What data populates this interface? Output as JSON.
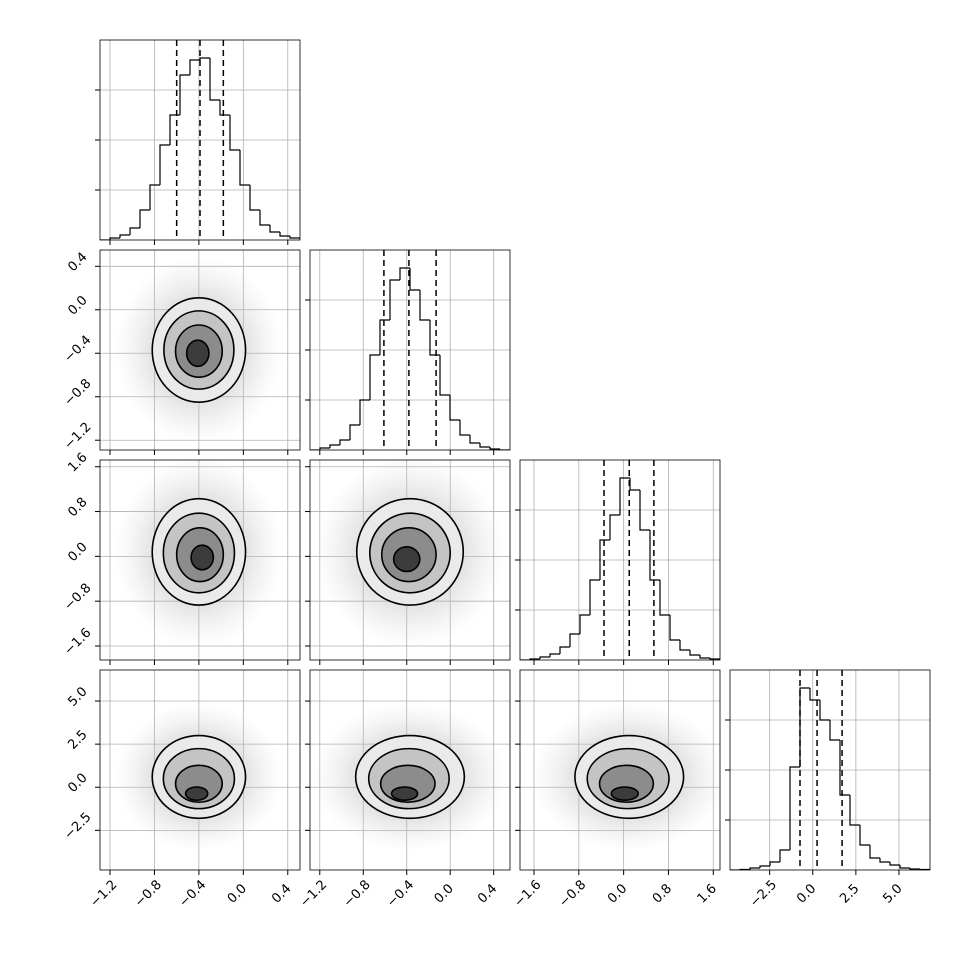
{
  "chart_data": {
    "type": "corner",
    "grid": true,
    "line_color": "#000000",
    "grid_color": "#b0b0b0",
    "contour_fills": [
      "#eaeaea",
      "#c4c4c4",
      "#8c8c8c",
      "#3c3c3c"
    ],
    "hist_ylim": [
      0,
      2000
    ],
    "hist_yticks": [
      500,
      1000,
      1500
    ],
    "variables": [
      {
        "lim": [
          -1.29,
          0.51
        ],
        "ticks": [
          {
            "value": -1.2,
            "label": "−1.2"
          },
          {
            "value": -0.8,
            "label": "−0.8"
          },
          {
            "value": -0.4,
            "label": "−0.4"
          },
          {
            "value": 0,
            "label": "0.0"
          },
          0.4
        ],
        "bins": [
          -1.29,
          -1.2,
          -1.11,
          -1.02,
          -0.93,
          -0.84,
          -0.75,
          -0.66,
          -0.57,
          -0.48,
          -0.39,
          -0.3,
          -0.21,
          -0.12,
          -0.03,
          0.06,
          0.15,
          0.24,
          0.33,
          0.42,
          0.51
        ],
        "counts": [
          0,
          20,
          50,
          120,
          300,
          550,
          950,
          1250,
          1650,
          1800,
          1820,
          1400,
          1250,
          900,
          550,
          300,
          150,
          80,
          40,
          20
        ],
        "quantiles": [
          -0.6,
          -0.39,
          -0.18
        ]
      },
      {
        "lim": [
          -1.29,
          0.55
        ],
        "ticks": [
          {
            "value": -1.2,
            "label": "−1.2"
          },
          {
            "value": -0.8,
            "label": "−0.8"
          },
          {
            "value": -0.4,
            "label": "−0.4"
          },
          {
            "value": 0,
            "label": "0.0"
          },
          0.4
        ],
        "bins": [
          -1.29,
          -1.198,
          -1.106,
          -1.014,
          -0.922,
          -0.83,
          -0.738,
          -0.646,
          -0.554,
          -0.462,
          -0.37,
          -0.278,
          -0.186,
          -0.094,
          -0.002,
          0.09,
          0.182,
          0.274,
          0.366,
          0.458,
          0.55
        ],
        "counts": [
          0,
          20,
          50,
          100,
          250,
          500,
          950,
          1300,
          1700,
          1820,
          1600,
          1300,
          950,
          550,
          300,
          150,
          70,
          30,
          10,
          0
        ],
        "quantiles": [
          -0.61,
          -0.38,
          -0.13
        ]
      },
      {
        "lim": [
          -1.85,
          1.72
        ],
        "ticks": [
          {
            "value": -1.6,
            "label": "−1.6"
          },
          {
            "value": -0.8,
            "label": "−0.8"
          },
          {
            "value": 0,
            "label": "0.0"
          },
          0.8,
          1.6
        ],
        "bins": [
          -1.85,
          -1.6715,
          -1.493,
          -1.3145,
          -1.136,
          -0.9575,
          -0.779,
          -0.6005,
          -0.422,
          -0.2435,
          -0.065,
          0.1135,
          0.292,
          0.4705,
          0.649,
          0.8275,
          1.006,
          1.1845,
          1.363,
          1.5415,
          1.72
        ],
        "counts": [
          0,
          10,
          30,
          60,
          130,
          260,
          450,
          800,
          1200,
          1450,
          1820,
          1700,
          1300,
          800,
          450,
          200,
          100,
          50,
          20,
          10
        ],
        "quantiles": [
          -0.35,
          0.1,
          0.54
        ]
      },
      {
        "lim": [
          -4.8,
          6.8
        ],
        "ticks": [
          {
            "value": -2.5,
            "label": "−2.5"
          },
          {
            "value": 0,
            "label": "0.0"
          },
          2.5,
          {
            "value": 5,
            "label": "5.0"
          }
        ],
        "bins": [
          -4.8,
          -4.22,
          -3.64,
          -3.06,
          -2.48,
          -1.9,
          -1.32,
          -0.74,
          -0.16,
          0.42,
          1.0,
          1.58,
          2.16,
          2.74,
          3.32,
          3.9,
          4.48,
          5.06,
          5.64,
          6.22,
          6.8
        ],
        "counts": [
          0,
          5,
          20,
          40,
          80,
          200,
          1030,
          1820,
          1700,
          1500,
          1300,
          750,
          450,
          250,
          120,
          80,
          50,
          20,
          10,
          5
        ],
        "quantiles": [
          -0.74,
          0.25,
          1.7
        ]
      }
    ],
    "panels": [
      {
        "x": 0,
        "y": 1,
        "contours": [
          {
            "cx": -0.4,
            "cy": -0.37,
            "rx": 0.42,
            "ry": 0.48
          },
          {
            "cx": -0.4,
            "cy": -0.37,
            "rx": 0.315,
            "ry": 0.36
          },
          {
            "cx": -0.4,
            "cy": -0.38,
            "rx": 0.21,
            "ry": 0.24
          },
          {
            "cx": -0.41,
            "cy": -0.4,
            "rx": 0.1,
            "ry": 0.12
          }
        ]
      },
      {
        "x": 0,
        "y": 2,
        "contours": [
          {
            "cx": -0.4,
            "cy": 0.08,
            "rx": 0.42,
            "ry": 0.95
          },
          {
            "cx": -0.4,
            "cy": 0.06,
            "rx": 0.32,
            "ry": 0.71
          },
          {
            "cx": -0.39,
            "cy": 0.03,
            "rx": 0.21,
            "ry": 0.48
          },
          {
            "cx": -0.37,
            "cy": -0.02,
            "rx": 0.1,
            "ry": 0.22
          }
        ]
      },
      {
        "x": 1,
        "y": 2,
        "contours": [
          {
            "cx": -0.37,
            "cy": 0.08,
            "rx": 0.49,
            "ry": 0.95
          },
          {
            "cx": -0.37,
            "cy": 0.06,
            "rx": 0.37,
            "ry": 0.71
          },
          {
            "cx": -0.38,
            "cy": 0.03,
            "rx": 0.25,
            "ry": 0.48
          },
          {
            "cx": -0.4,
            "cy": -0.05,
            "rx": 0.12,
            "ry": 0.22
          }
        ]
      },
      {
        "x": 0,
        "y": 3,
        "contours": [
          {
            "cx": -0.4,
            "cy": 0.6,
            "rx": 0.42,
            "ry": 2.4
          },
          {
            "cx": -0.4,
            "cy": 0.5,
            "rx": 0.32,
            "ry": 1.74
          },
          {
            "cx": -0.4,
            "cy": 0.2,
            "rx": 0.21,
            "ry": 1.07
          },
          {
            "cx": -0.42,
            "cy": -0.37,
            "rx": 0.1,
            "ry": 0.38
          }
        ]
      },
      {
        "x": 1,
        "y": 3,
        "contours": [
          {
            "cx": -0.37,
            "cy": 0.6,
            "rx": 0.5,
            "ry": 2.4
          },
          {
            "cx": -0.38,
            "cy": 0.5,
            "rx": 0.37,
            "ry": 1.74
          },
          {
            "cx": -0.39,
            "cy": 0.2,
            "rx": 0.25,
            "ry": 1.07
          },
          {
            "cx": -0.42,
            "cy": -0.37,
            "rx": 0.12,
            "ry": 0.38
          }
        ]
      },
      {
        "x": 2,
        "y": 3,
        "contours": [
          {
            "cx": 0.1,
            "cy": 0.6,
            "rx": 0.97,
            "ry": 2.4
          },
          {
            "cx": 0.08,
            "cy": 0.5,
            "rx": 0.73,
            "ry": 1.74
          },
          {
            "cx": 0.05,
            "cy": 0.2,
            "rx": 0.48,
            "ry": 1.07
          },
          {
            "cx": 0.02,
            "cy": -0.37,
            "rx": 0.24,
            "ry": 0.38
          }
        ]
      }
    ]
  }
}
